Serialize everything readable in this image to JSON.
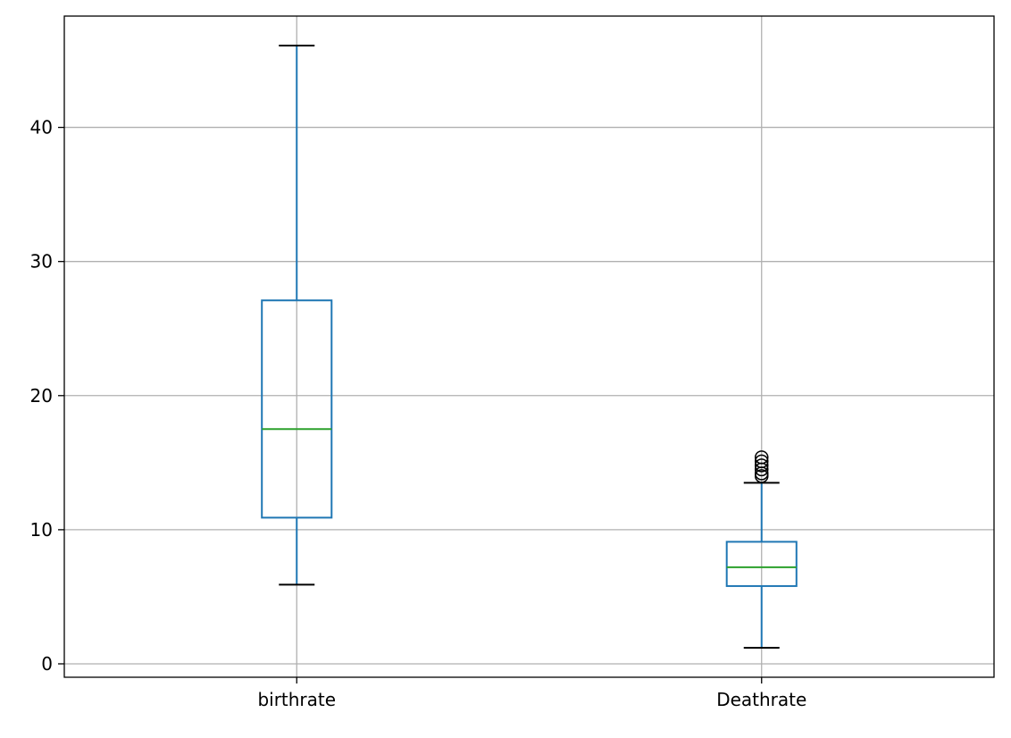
{
  "chart_data": {
    "type": "box",
    "title": "",
    "xlabel": "",
    "ylabel": "",
    "ylim": [
      -1.0,
      48.3
    ],
    "yticks": [
      0,
      10,
      20,
      30,
      40
    ],
    "grid": true,
    "colors": {
      "box": "#1f77b4",
      "median": "#2ca02c",
      "whisker_cap": "#000000",
      "grid": "#b0b0b0",
      "outlier": "#000000"
    },
    "categories": [
      "birthrate",
      "Deathrate"
    ],
    "boxes": [
      {
        "label": "birthrate",
        "whisker_low": 5.9,
        "q1": 10.9,
        "median": 17.5,
        "q3": 27.1,
        "whisker_high": 46.1,
        "outliers": []
      },
      {
        "label": "Deathrate",
        "whisker_low": 1.2,
        "q1": 5.8,
        "median": 7.2,
        "q3": 9.1,
        "whisker_high": 13.5,
        "outliers": [
          14.0,
          14.2,
          14.5,
          14.8,
          15.1,
          15.4
        ]
      }
    ]
  }
}
